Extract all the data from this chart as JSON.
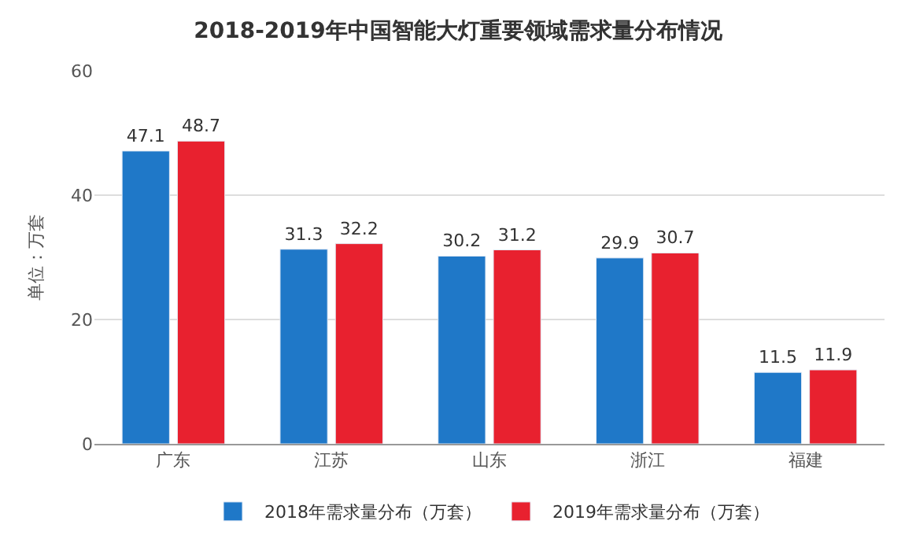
{
  "chart_data": {
    "type": "bar",
    "title": "2018-2019年中国智能大灯重要领域需求量分布情况",
    "ylabel": "单位：万套",
    "categories": [
      "广东",
      "江苏",
      "山东",
      "浙江",
      "福建"
    ],
    "series": [
      {
        "name": "2018年需求量分布（万套）",
        "color": "#1f78c8",
        "values": [
          47.1,
          31.3,
          30.2,
          29.9,
          11.5
        ]
      },
      {
        "name": "2019年需求量分布（万套）",
        "color": "#e8212f",
        "values": [
          48.7,
          32.2,
          31.2,
          30.7,
          11.9
        ]
      }
    ],
    "ylim": [
      0,
      60
    ],
    "yticks": [
      0,
      20,
      40,
      60
    ],
    "grid": "y",
    "legend": "bottom",
    "data_labels": true
  }
}
